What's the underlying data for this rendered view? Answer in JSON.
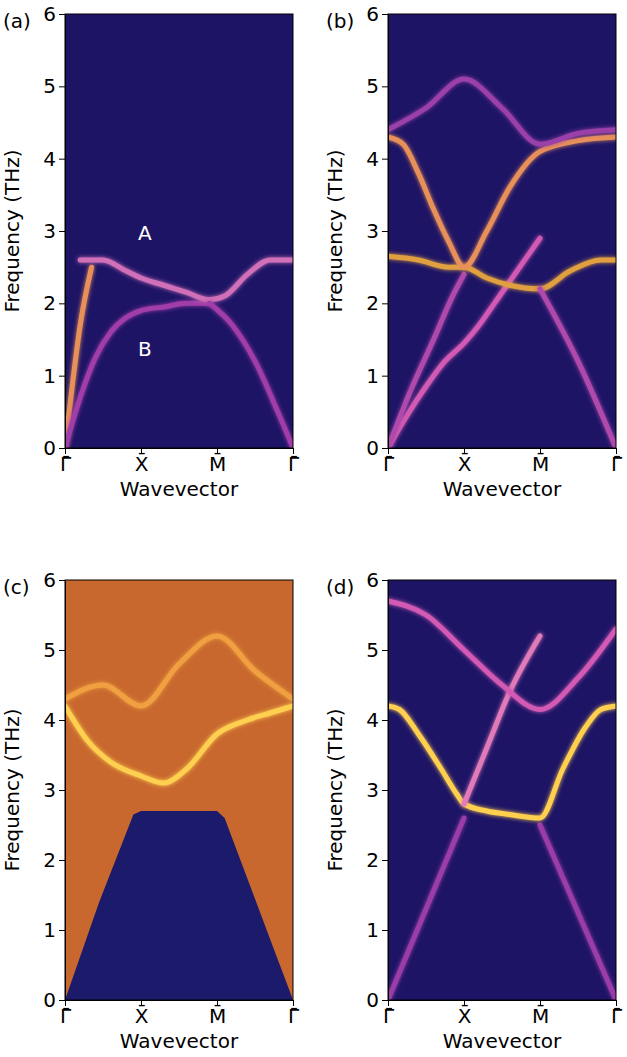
{
  "chart_data": [
    {
      "type": "line",
      "title": "(a)",
      "x_label": "Wavevector",
      "y_label": "Frequency (THz)",
      "color": "#1e1466",
      "xlim": [
        0,
        3
      ],
      "ylim": [
        0,
        6
      ],
      "xticks": [
        {
          "value": 0,
          "label": "Γ̄"
        },
        {
          "value": 1,
          "label": "X̄"
        },
        {
          "value": 2,
          "label": "M̄"
        },
        {
          "value": 3,
          "label": "Γ̄"
        }
      ],
      "yticks": [
        0,
        1,
        2,
        3,
        4,
        5,
        6
      ],
      "annotations": [
        {
          "text": "A",
          "x": 1.05,
          "y": 2.95
        },
        {
          "text": "B",
          "x": 1.05,
          "y": 1.35
        }
      ],
      "series": [
        {
          "color": "#e8905a",
          "x": [
            0,
            0.1,
            0.2,
            0.35
          ],
          "values": [
            0,
            0.9,
            1.7,
            2.5
          ]
        },
        {
          "color": "#a03ca8",
          "x": [
            0,
            0.2,
            0.4,
            0.6,
            0.8,
            1.0,
            1.3,
            1.6,
            1.9
          ],
          "values": [
            0,
            0.7,
            1.25,
            1.6,
            1.8,
            1.9,
            1.95,
            2.0,
            2.0
          ]
        },
        {
          "color": "#d070b8",
          "x": [
            0.2,
            0.5,
            0.8,
            1.0,
            1.3,
            1.6,
            1.9,
            2.1,
            2.4,
            2.7,
            3.0
          ],
          "values": [
            2.6,
            2.6,
            2.45,
            2.35,
            2.25,
            2.15,
            2.05,
            2.1,
            2.4,
            2.6,
            2.6
          ]
        },
        {
          "color": "#a03ca8",
          "x": [
            1.9,
            2.2,
            2.5,
            2.8,
            3.0
          ],
          "values": [
            2.0,
            1.7,
            1.2,
            0.5,
            0
          ]
        }
      ]
    },
    {
      "type": "line",
      "title": "(b)",
      "x_label": "Wavevector",
      "y_label": "Frequency (THz)",
      "color": "#1e1466",
      "xlim": [
        0,
        3
      ],
      "ylim": [
        0,
        6
      ],
      "xticks": [
        {
          "value": 0,
          "label": "Γ̄"
        },
        {
          "value": 1,
          "label": "X̄"
        },
        {
          "value": 2,
          "label": "M̄"
        },
        {
          "value": 3,
          "label": "Γ̄"
        }
      ],
      "yticks": [
        0,
        1,
        2,
        3,
        4,
        5,
        6
      ],
      "series": [
        {
          "color": "#d25ab4",
          "x": [
            0,
            0.25,
            0.5,
            0.75,
            1.0,
            1.2,
            1.4,
            1.6,
            1.8,
            2.0
          ],
          "values": [
            0,
            0.45,
            0.85,
            1.2,
            1.45,
            1.7,
            2.0,
            2.3,
            2.6,
            2.9
          ]
        },
        {
          "color": "#b04aac",
          "x": [
            0,
            0.3,
            0.6,
            0.85,
            1.0
          ],
          "values": [
            0,
            0.8,
            1.5,
            2.1,
            2.4
          ]
        },
        {
          "color": "#e0a040",
          "x": [
            0,
            0.4,
            0.8,
            1.0,
            1.3,
            1.6,
            2.0,
            2.4,
            2.8,
            3.0
          ],
          "values": [
            2.65,
            2.6,
            2.5,
            2.5,
            2.35,
            2.25,
            2.2,
            2.45,
            2.6,
            2.6
          ]
        },
        {
          "color": "#e8905a",
          "x": [
            0,
            0.2,
            0.4,
            0.6,
            0.8,
            1.0,
            1.3,
            1.6,
            2.0,
            2.5,
            3.0
          ],
          "values": [
            4.3,
            4.2,
            3.8,
            3.3,
            2.85,
            2.5,
            3.0,
            3.6,
            4.1,
            4.25,
            4.3
          ]
        },
        {
          "color": "#9a40a8",
          "x": [
            0,
            0.5,
            1.0,
            1.5,
            2.0,
            2.5,
            3.0
          ],
          "values": [
            4.4,
            4.7,
            5.1,
            4.7,
            4.2,
            4.35,
            4.4
          ]
        },
        {
          "color": "#b04aac",
          "x": [
            2.0,
            2.5,
            3.0
          ],
          "values": [
            2.2,
            1.2,
            0
          ]
        }
      ]
    },
    {
      "type": "line",
      "title": "(c)",
      "x_label": "Wavevector",
      "y_label": "Frequency (THz)",
      "color": "#c8682e",
      "xlim": [
        0,
        3
      ],
      "ylim": [
        0,
        6
      ],
      "xticks": [
        {
          "value": 0,
          "label": "Γ̄"
        },
        {
          "value": 1,
          "label": "X̄"
        },
        {
          "value": 2,
          "label": "M̄"
        },
        {
          "value": 3,
          "label": "Γ̄"
        }
      ],
      "yticks": [
        0,
        1,
        2,
        3,
        4,
        5,
        6
      ],
      "series": [
        {
          "type": "area",
          "color": "#1c1a6a",
          "x": [
            0,
            0.45,
            0.9,
            1.0,
            1.5,
            2.0,
            2.1,
            2.55,
            3.0
          ],
          "values": [
            0,
            1.4,
            2.65,
            2.7,
            2.7,
            2.7,
            2.6,
            1.3,
            0
          ]
        },
        {
          "color": "#ffd050",
          "x": [
            0,
            0.3,
            0.6,
            1.0,
            1.3,
            1.6,
            2.0,
            2.4,
            2.7,
            3.0
          ],
          "values": [
            4.2,
            3.7,
            3.4,
            3.2,
            3.1,
            3.3,
            3.8,
            4.0,
            4.1,
            4.2
          ]
        },
        {
          "color": "#f0a040",
          "x": [
            0,
            0.5,
            1.0,
            1.5,
            2.0,
            2.5,
            3.0
          ],
          "values": [
            4.3,
            4.5,
            4.2,
            4.8,
            5.2,
            4.7,
            4.3
          ]
        }
      ]
    },
    {
      "type": "line",
      "title": "(d)",
      "x_label": "Wavevector",
      "y_label": "Frequency (THz)",
      "color": "#1e1466",
      "xlim": [
        0,
        3
      ],
      "ylim": [
        0,
        6
      ],
      "xticks": [
        {
          "value": 0,
          "label": "Γ̄"
        },
        {
          "value": 1,
          "label": "X̄"
        },
        {
          "value": 2,
          "label": "M̄"
        },
        {
          "value": 3,
          "label": "Γ̄"
        }
      ],
      "yticks": [
        0,
        1,
        2,
        3,
        4,
        5,
        6
      ],
      "series": [
        {
          "color": "#9a3ca8",
          "x": [
            0,
            0.5,
            1.0
          ],
          "values": [
            0,
            1.3,
            2.6
          ]
        },
        {
          "color": "#9a3ca8",
          "x": [
            2.0,
            2.5,
            3.0
          ],
          "values": [
            2.5,
            1.25,
            0
          ]
        },
        {
          "color": "#ffd050",
          "x": [
            0,
            0.15,
            0.4,
            0.7,
            0.9,
            1.0,
            1.3,
            1.6,
            2.0,
            2.3,
            2.6,
            2.8,
            3.0
          ],
          "values": [
            4.2,
            4.15,
            3.8,
            3.3,
            2.95,
            2.8,
            2.7,
            2.65,
            2.6,
            3.3,
            3.9,
            4.15,
            4.2
          ]
        },
        {
          "color": "#e07ab8",
          "x": [
            1.0,
            1.3,
            1.6,
            2.0
          ],
          "values": [
            2.8,
            3.6,
            4.4,
            5.2
          ]
        },
        {
          "color": "#d25ab4",
          "x": [
            0,
            0.5,
            1.0,
            1.5,
            2.0,
            2.5,
            3.0
          ],
          "values": [
            5.7,
            5.5,
            5.0,
            4.5,
            4.15,
            4.6,
            5.3
          ]
        }
      ]
    }
  ]
}
